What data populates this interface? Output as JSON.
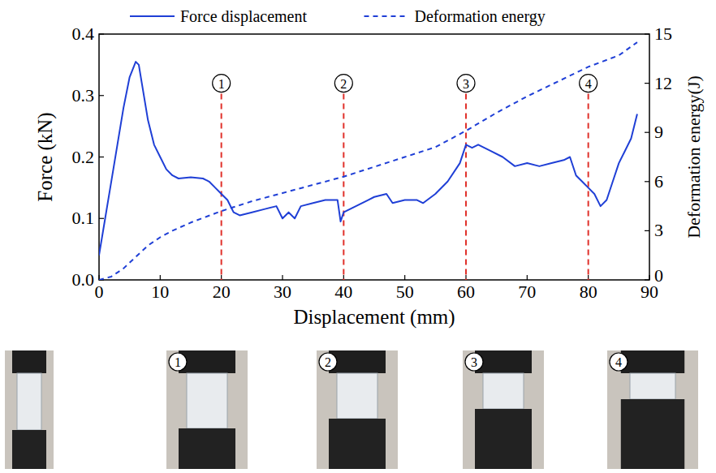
{
  "chart_data": {
    "type": "line",
    "x_label": "Displacement (mm)",
    "y_label": "Force (kN)",
    "y2_label": "Deformation energy(J)",
    "xlim": [
      0,
      90
    ],
    "xticks": [
      0,
      10,
      20,
      30,
      40,
      50,
      60,
      70,
      80,
      90
    ],
    "ylim": [
      0,
      0.4
    ],
    "yticks": [
      {
        "value": 0,
        "label": "0.0"
      },
      0.1,
      0.2,
      0.3,
      0.4
    ],
    "y2lim": [
      0,
      15
    ],
    "y2ticks": [
      0,
      3,
      6,
      9,
      12,
      15
    ],
    "legend": "top",
    "series": [
      {
        "name": "Force displacement",
        "color": "#1f3fd6",
        "line_style": "solid",
        "x": [
          0,
          1,
          2,
          3,
          4,
          5,
          6,
          6.5,
          7,
          8,
          9,
          10,
          11,
          12,
          13,
          15,
          17,
          18,
          19,
          20,
          21,
          22,
          23,
          25,
          27,
          29,
          30,
          31,
          32,
          33,
          35,
          37,
          39,
          39.5,
          40,
          42,
          44,
          45,
          47,
          48,
          50,
          52,
          53,
          55,
          57,
          59,
          60,
          61,
          62,
          64,
          66,
          68,
          70,
          72,
          74,
          76,
          77,
          78,
          79,
          80,
          81,
          82,
          83,
          84,
          85,
          86,
          87,
          88
        ],
        "values": [
          0.04,
          0.1,
          0.16,
          0.22,
          0.28,
          0.33,
          0.355,
          0.35,
          0.32,
          0.26,
          0.22,
          0.2,
          0.18,
          0.17,
          0.165,
          0.167,
          0.165,
          0.16,
          0.15,
          0.14,
          0.13,
          0.11,
          0.105,
          0.11,
          0.115,
          0.12,
          0.1,
          0.11,
          0.1,
          0.12,
          0.125,
          0.13,
          0.13,
          0.095,
          0.11,
          0.12,
          0.13,
          0.135,
          0.14,
          0.125,
          0.13,
          0.13,
          0.125,
          0.14,
          0.16,
          0.19,
          0.22,
          0.215,
          0.22,
          0.21,
          0.2,
          0.185,
          0.19,
          0.185,
          0.19,
          0.195,
          0.2,
          0.17,
          0.16,
          0.15,
          0.14,
          0.12,
          0.13,
          0.16,
          0.19,
          0.21,
          0.23,
          0.27
        ]
      },
      {
        "name": "Deformation energy",
        "color": "#1f3fd6",
        "line_style": "dashed",
        "axis": "y2",
        "x": [
          0,
          2,
          4,
          6,
          8,
          10,
          12,
          15,
          20,
          25,
          30,
          35,
          40,
          45,
          50,
          55,
          60,
          65,
          70,
          75,
          80,
          85,
          88
        ],
        "values": [
          0,
          0.2,
          0.7,
          1.4,
          2.1,
          2.6,
          3.0,
          3.5,
          4.2,
          4.8,
          5.3,
          5.8,
          6.3,
          6.9,
          7.5,
          8.1,
          9.1,
          10.2,
          11.2,
          12.1,
          13.0,
          13.7,
          14.5
        ]
      }
    ],
    "annotations": [
      {
        "x": 20,
        "label": "1",
        "color": "#e0312b"
      },
      {
        "x": 40,
        "label": "2",
        "color": "#e0312b"
      },
      {
        "x": 60,
        "label": "3",
        "color": "#e0312b"
      },
      {
        "x": 80,
        "label": "4",
        "color": "#e0312b"
      }
    ]
  },
  "photos": {
    "labels": [
      "1",
      "2",
      "3",
      "4"
    ]
  }
}
